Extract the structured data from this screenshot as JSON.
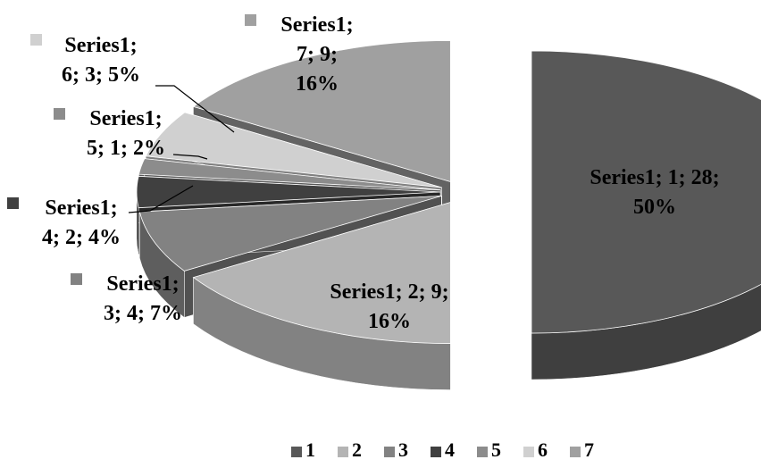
{
  "chart_data": {
    "type": "pie",
    "style": "3d-exploded",
    "series": [
      {
        "name": "Series1",
        "categories": [
          "1",
          "2",
          "3",
          "4",
          "5",
          "6",
          "7"
        ],
        "values": [
          28,
          9,
          4,
          2,
          1,
          3,
          9
        ],
        "percentages": [
          "50%",
          "16%",
          "7%",
          "4%",
          "2%",
          "5%",
          "16%"
        ]
      }
    ],
    "data_labels": [
      [
        "Series1; 1; 28;",
        "50%"
      ],
      [
        "Series1; 2; 9;",
        "16%"
      ],
      [
        "Series1;",
        "3; 4; 7%"
      ],
      [
        "Series1;",
        "4; 2; 4%"
      ],
      [
        "Series1;",
        "5; 1; 2%"
      ],
      [
        "Series1;",
        "6; 3; 5%"
      ],
      [
        "Series1;",
        "7; 9;",
        "16%"
      ]
    ],
    "legend": {
      "placement": "bottom",
      "entries": [
        "1",
        "2",
        "3",
        "4",
        "5",
        "6",
        "7"
      ]
    },
    "colors": [
      "#585858",
      "#b4b4b4",
      "#828282",
      "#404040",
      "#8c8c8c",
      "#d0d0d0",
      "#a0a0a0"
    ]
  }
}
